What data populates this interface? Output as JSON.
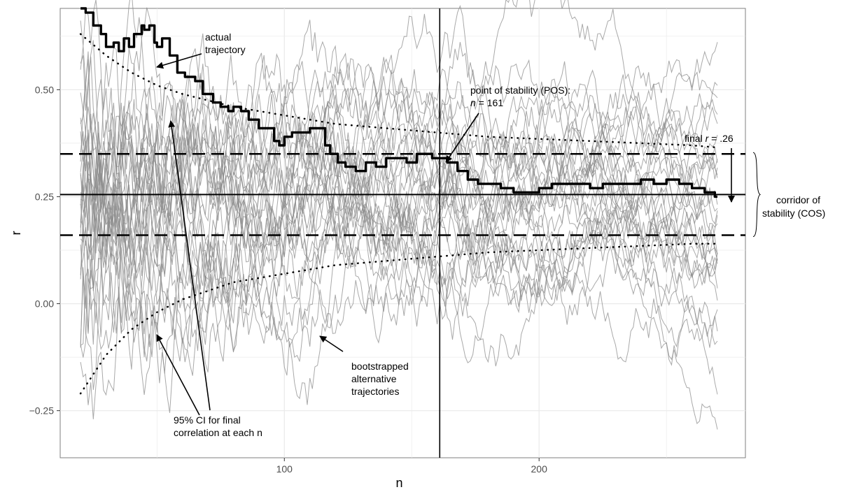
{
  "chart_data": {
    "type": "line",
    "title": "",
    "xlabel": "n",
    "ylabel": "r",
    "xlim": [
      12,
      281
    ],
    "ylim": [
      -0.36,
      0.69
    ],
    "x_ticks": [
      100,
      200
    ],
    "x_tick_labels": [
      "100",
      "200"
    ],
    "y_ticks": [
      -0.25,
      0.0,
      0.25,
      0.5
    ],
    "y_tick_labels": [
      "−0.25",
      "0.00",
      "0.25",
      "0.50"
    ],
    "grid": true,
    "legend": "none",
    "final_r": 0.255,
    "corridor": [
      0.16,
      0.35
    ],
    "pos_n": 161,
    "actual_trajectory": {
      "x": [
        20,
        22,
        25,
        28,
        30,
        33,
        35,
        37,
        39,
        41,
        44,
        45,
        47,
        49,
        50,
        52,
        55,
        58,
        61,
        65,
        68,
        72,
        75,
        78,
        80,
        83,
        86,
        90,
        93,
        96,
        98,
        100,
        103,
        106,
        110,
        114,
        116,
        118,
        121,
        124,
        128,
        132,
        136,
        140,
        144,
        148,
        152,
        156,
        158,
        161,
        164,
        168,
        172,
        176,
        180,
        185,
        190,
        195,
        200,
        205,
        210,
        215,
        220,
        225,
        230,
        235,
        240,
        245,
        250,
        255,
        260,
        265,
        269,
        270
      ],
      "y": [
        0.69,
        0.68,
        0.65,
        0.63,
        0.6,
        0.61,
        0.59,
        0.62,
        0.6,
        0.63,
        0.65,
        0.64,
        0.65,
        0.61,
        0.6,
        0.62,
        0.58,
        0.54,
        0.53,
        0.52,
        0.49,
        0.47,
        0.46,
        0.45,
        0.46,
        0.45,
        0.43,
        0.41,
        0.41,
        0.38,
        0.37,
        0.39,
        0.4,
        0.4,
        0.41,
        0.41,
        0.37,
        0.35,
        0.33,
        0.32,
        0.31,
        0.33,
        0.32,
        0.34,
        0.34,
        0.33,
        0.35,
        0.35,
        0.34,
        0.34,
        0.33,
        0.31,
        0.29,
        0.28,
        0.28,
        0.27,
        0.26,
        0.26,
        0.27,
        0.28,
        0.28,
        0.28,
        0.27,
        0.28,
        0.28,
        0.28,
        0.29,
        0.28,
        0.29,
        0.28,
        0.27,
        0.26,
        0.25,
        0.25
      ]
    },
    "ci_upper": {
      "x": [
        20,
        30,
        40,
        50,
        60,
        80,
        100,
        120,
        140,
        160,
        180,
        200,
        220,
        240,
        260,
        270
      ],
      "y": [
        0.63,
        0.58,
        0.54,
        0.51,
        0.49,
        0.46,
        0.44,
        0.42,
        0.41,
        0.4,
        0.39,
        0.385,
        0.38,
        0.375,
        0.37,
        0.365
      ]
    },
    "ci_lower": {
      "x": [
        20,
        30,
        40,
        50,
        60,
        80,
        100,
        120,
        140,
        160,
        180,
        200,
        220,
        240,
        260,
        270
      ],
      "y": [
        -0.21,
        -0.12,
        -0.06,
        -0.02,
        0.01,
        0.05,
        0.07,
        0.09,
        0.1,
        0.11,
        0.12,
        0.125,
        0.13,
        0.135,
        0.14,
        0.14
      ]
    },
    "bootstrap": {
      "count": 30,
      "n_start": 20,
      "n_end": 270
    },
    "annotations": [
      {
        "lines": [
          "actual",
          "trajectory"
        ]
      },
      {
        "lines": [
          "point of stability (POS):"
        ],
        "n_line": "n = 161",
        "n_italic": "n",
        "n_rest": " = 161"
      },
      {
        "lines": [
          "final r = .26"
        ],
        "prefix": "final ",
        "italic": "r",
        "suffix": " = .26"
      },
      {
        "lines": [
          "corridor of",
          "stability (COS)"
        ]
      },
      {
        "lines": [
          "bootstrapped",
          "alternative",
          "trajectories"
        ]
      },
      {
        "lines": [
          "95% CI for final",
          "correlation at each n"
        ]
      }
    ],
    "colors": {
      "background": "#ffffff",
      "panel": "#ffffff",
      "grid": "#ebebeb",
      "bootstrap": "#8c8c8c",
      "actual": "#000000"
    }
  }
}
